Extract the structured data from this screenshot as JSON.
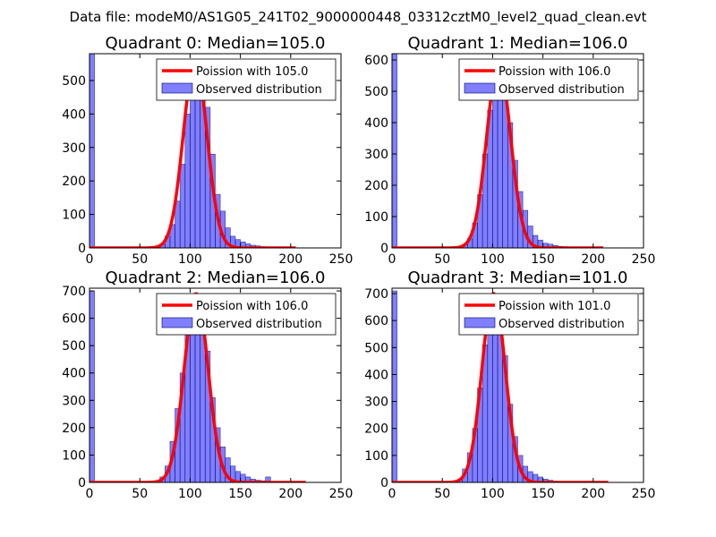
{
  "suptitle": "Data file: modeM0/AS1G05_241T02_9000000448_03312cztM0_level2_quad_clean.evt",
  "colors": {
    "bar": "#0000ff",
    "bar_edge": "#000066",
    "curve": "#ff0000",
    "axis": "#000000",
    "background": "#ffffff"
  },
  "chart_data": [
    {
      "type": "bar",
      "title": "Quadrant 0: Median=105.0",
      "xlim": [
        0,
        250
      ],
      "ylim": [
        0,
        580
      ],
      "xticks": [
        0,
        50,
        100,
        150,
        200,
        250
      ],
      "yticks": [
        0,
        100,
        200,
        300,
        400,
        500
      ],
      "legend": {
        "placement": "top-right",
        "entries": [
          "Poission with 105.0",
          "Observed distribution"
        ]
      },
      "histogram": {
        "bin_width": 5,
        "bins": [
          {
            "x": 0,
            "v": 580
          },
          {
            "x": 65,
            "v": 2
          },
          {
            "x": 70,
            "v": 10
          },
          {
            "x": 75,
            "v": 35
          },
          {
            "x": 80,
            "v": 70
          },
          {
            "x": 85,
            "v": 140
          },
          {
            "x": 90,
            "v": 250
          },
          {
            "x": 95,
            "v": 400
          },
          {
            "x": 100,
            "v": 510
          },
          {
            "x": 105,
            "v": 540
          },
          {
            "x": 110,
            "v": 480
          },
          {
            "x": 115,
            "v": 420
          },
          {
            "x": 120,
            "v": 280
          },
          {
            "x": 125,
            "v": 160
          },
          {
            "x": 130,
            "v": 110
          },
          {
            "x": 135,
            "v": 60
          },
          {
            "x": 140,
            "v": 35
          },
          {
            "x": 145,
            "v": 25
          },
          {
            "x": 150,
            "v": 18
          },
          {
            "x": 155,
            "v": 12
          },
          {
            "x": 160,
            "v": 8
          },
          {
            "x": 165,
            "v": 6
          },
          {
            "x": 170,
            "v": 4
          },
          {
            "x": 175,
            "v": 3
          },
          {
            "x": 180,
            "v": 2
          },
          {
            "x": 185,
            "v": 2
          },
          {
            "x": 190,
            "v": 1
          },
          {
            "x": 195,
            "v": 1
          }
        ]
      },
      "poisson": {
        "mean": 105.0,
        "peak": 560,
        "x_range": [
          0,
          205
        ]
      }
    },
    {
      "type": "bar",
      "title": "Quadrant 1: Median=106.0",
      "xlim": [
        0,
        250
      ],
      "ylim": [
        0,
        620
      ],
      "xticks": [
        0,
        50,
        100,
        150,
        200,
        250
      ],
      "yticks": [
        0,
        100,
        200,
        300,
        400,
        500,
        600
      ],
      "legend": {
        "placement": "top-right",
        "entries": [
          "Poission with 106.0",
          "Observed distribution"
        ]
      },
      "histogram": {
        "bin_width": 5,
        "bins": [
          {
            "x": 0,
            "v": 620
          },
          {
            "x": 65,
            "v": 3
          },
          {
            "x": 70,
            "v": 12
          },
          {
            "x": 75,
            "v": 30
          },
          {
            "x": 80,
            "v": 80
          },
          {
            "x": 85,
            "v": 170
          },
          {
            "x": 90,
            "v": 300
          },
          {
            "x": 95,
            "v": 440
          },
          {
            "x": 100,
            "v": 540
          },
          {
            "x": 105,
            "v": 570
          },
          {
            "x": 110,
            "v": 510
          },
          {
            "x": 115,
            "v": 400
          },
          {
            "x": 120,
            "v": 280
          },
          {
            "x": 125,
            "v": 180
          },
          {
            "x": 130,
            "v": 120
          },
          {
            "x": 135,
            "v": 70
          },
          {
            "x": 140,
            "v": 40
          },
          {
            "x": 145,
            "v": 25
          },
          {
            "x": 150,
            "v": 15
          },
          {
            "x": 155,
            "v": 12
          },
          {
            "x": 160,
            "v": 8
          },
          {
            "x": 165,
            "v": 5
          },
          {
            "x": 170,
            "v": 4
          },
          {
            "x": 175,
            "v": 3
          },
          {
            "x": 180,
            "v": 2
          },
          {
            "x": 185,
            "v": 1
          },
          {
            "x": 190,
            "v": 1
          }
        ]
      },
      "poisson": {
        "mean": 106.0,
        "peak": 590,
        "x_range": [
          0,
          210
        ]
      }
    },
    {
      "type": "bar",
      "title": "Quadrant 2: Median=106.0",
      "xlim": [
        0,
        250
      ],
      "ylim": [
        0,
        710
      ],
      "xticks": [
        0,
        50,
        100,
        150,
        200,
        250
      ],
      "yticks": [
        0,
        100,
        200,
        300,
        400,
        500,
        600,
        700
      ],
      "legend": {
        "placement": "top-right",
        "entries": [
          "Poission with 106.0",
          "Observed distribution"
        ]
      },
      "histogram": {
        "bin_width": 5,
        "bins": [
          {
            "x": 0,
            "v": 700
          },
          {
            "x": 65,
            "v": 3
          },
          {
            "x": 70,
            "v": 20
          },
          {
            "x": 75,
            "v": 60
          },
          {
            "x": 80,
            "v": 150
          },
          {
            "x": 85,
            "v": 270
          },
          {
            "x": 90,
            "v": 400
          },
          {
            "x": 95,
            "v": 560
          },
          {
            "x": 100,
            "v": 640
          },
          {
            "x": 105,
            "v": 670
          },
          {
            "x": 110,
            "v": 600
          },
          {
            "x": 115,
            "v": 480
          },
          {
            "x": 120,
            "v": 310
          },
          {
            "x": 125,
            "v": 200
          },
          {
            "x": 130,
            "v": 130
          },
          {
            "x": 135,
            "v": 90
          },
          {
            "x": 140,
            "v": 60
          },
          {
            "x": 145,
            "v": 40
          },
          {
            "x": 150,
            "v": 30
          },
          {
            "x": 155,
            "v": 20
          },
          {
            "x": 160,
            "v": 12
          },
          {
            "x": 165,
            "v": 8
          },
          {
            "x": 170,
            "v": 6
          },
          {
            "x": 175,
            "v": 20
          },
          {
            "x": 180,
            "v": 4
          },
          {
            "x": 185,
            "v": 2
          },
          {
            "x": 190,
            "v": 1
          }
        ]
      },
      "poisson": {
        "mean": 106.0,
        "peak": 690,
        "x_range": [
          0,
          215
        ]
      }
    },
    {
      "type": "bar",
      "title": "Quadrant 3: Median=101.0",
      "xlim": [
        0,
        250
      ],
      "ylim": [
        0,
        720
      ],
      "xticks": [
        0,
        50,
        100,
        150,
        200,
        250
      ],
      "yticks": [
        0,
        100,
        200,
        300,
        400,
        500,
        600,
        700
      ],
      "legend": {
        "placement": "top-right",
        "entries": [
          "Poission with 101.0",
          "Observed distribution"
        ]
      },
      "histogram": {
        "bin_width": 5,
        "bins": [
          {
            "x": 0,
            "v": 710
          },
          {
            "x": 60,
            "v": 2
          },
          {
            "x": 65,
            "v": 10
          },
          {
            "x": 70,
            "v": 50
          },
          {
            "x": 75,
            "v": 110
          },
          {
            "x": 80,
            "v": 200
          },
          {
            "x": 85,
            "v": 350
          },
          {
            "x": 90,
            "v": 510
          },
          {
            "x": 95,
            "v": 640
          },
          {
            "x": 100,
            "v": 660
          },
          {
            "x": 105,
            "v": 590
          },
          {
            "x": 110,
            "v": 470
          },
          {
            "x": 115,
            "v": 290
          },
          {
            "x": 120,
            "v": 170
          },
          {
            "x": 125,
            "v": 100
          },
          {
            "x": 130,
            "v": 60
          },
          {
            "x": 135,
            "v": 40
          },
          {
            "x": 140,
            "v": 30
          },
          {
            "x": 145,
            "v": 20
          },
          {
            "x": 150,
            "v": 12
          },
          {
            "x": 155,
            "v": 8
          },
          {
            "x": 160,
            "v": 5
          },
          {
            "x": 165,
            "v": 3
          },
          {
            "x": 170,
            "v": 2
          },
          {
            "x": 175,
            "v": 1
          },
          {
            "x": 180,
            "v": 1
          }
        ]
      },
      "poisson": {
        "mean": 101.0,
        "peak": 700,
        "x_range": [
          0,
          215
        ]
      }
    }
  ]
}
